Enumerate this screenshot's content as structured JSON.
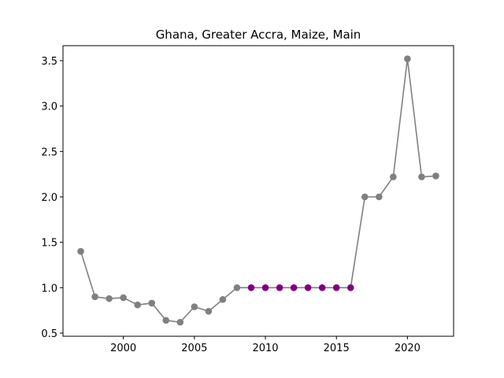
{
  "chart_data": {
    "type": "line",
    "title": "Ghana, Greater Accra, Maize, Main",
    "xlabel": "",
    "ylabel": "",
    "xlim": [
      1995.75,
      2023.25
    ],
    "ylim": [
      0.465,
      3.665
    ],
    "xticks": [
      2000,
      2005,
      2010,
      2015,
      2020
    ],
    "yticks": [
      0.5,
      1.0,
      1.5,
      2.0,
      2.5,
      3.0,
      3.5
    ],
    "xtick_labels": [
      "2000",
      "2005",
      "2010",
      "2015",
      "2020"
    ],
    "ytick_labels": [
      "0.5",
      "1.0",
      "1.5",
      "2.0",
      "2.5",
      "3.0",
      "3.5"
    ],
    "grid": false,
    "line_color": "#808080",
    "series": [
      {
        "x": [
          1997,
          1998,
          1999,
          2000,
          2001,
          2002,
          2003,
          2004,
          2005,
          2006,
          2007,
          2008,
          2009,
          2010,
          2011,
          2012,
          2013,
          2014,
          2015,
          2016,
          2017,
          2018,
          2019,
          2020,
          2021,
          2022
        ],
        "y": [
          1.4,
          0.9,
          0.88,
          0.89,
          0.81,
          0.83,
          0.64,
          0.62,
          0.79,
          0.74,
          0.87,
          1.0,
          1.0,
          1.0,
          1.0,
          1.0,
          1.0,
          1.0,
          1.0,
          1.0,
          2.0,
          2.0,
          2.22,
          3.52,
          2.22,
          2.23
        ],
        "colors": [
          "#808080",
          "#808080",
          "#808080",
          "#808080",
          "#808080",
          "#808080",
          "#808080",
          "#808080",
          "#808080",
          "#808080",
          "#808080",
          "#808080",
          "#800080",
          "#800080",
          "#800080",
          "#800080",
          "#800080",
          "#800080",
          "#800080",
          "#800080",
          "#808080",
          "#808080",
          "#808080",
          "#808080",
          "#808080",
          "#808080"
        ]
      }
    ]
  }
}
